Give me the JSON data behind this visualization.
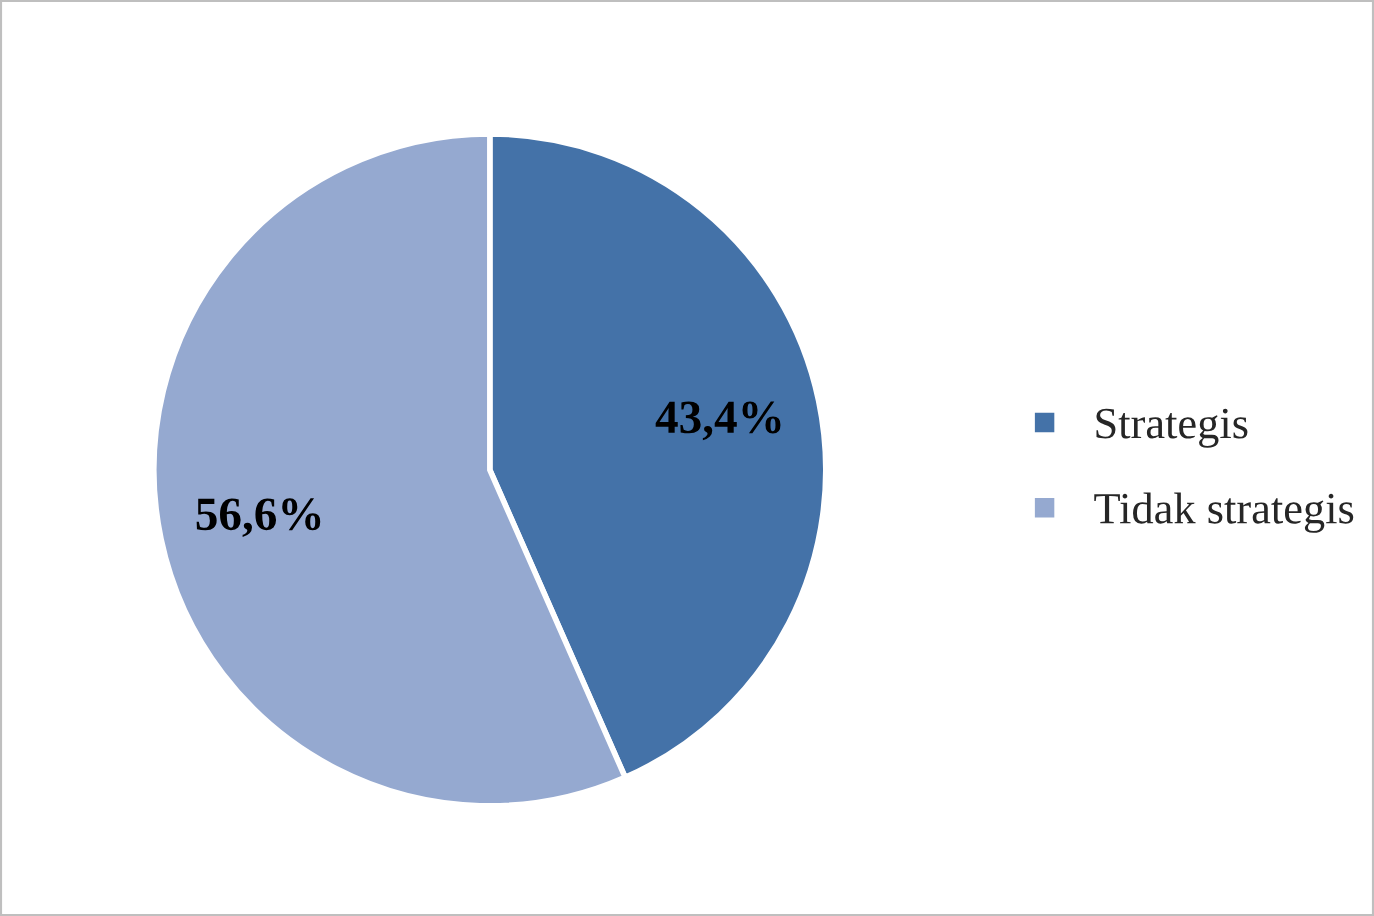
{
  "chart_data": {
    "type": "pie",
    "categories": [
      "Strategis",
      "Tidak strategis"
    ],
    "values": [
      43.4,
      56.6
    ],
    "value_labels": [
      "43,4%",
      "56,6%"
    ],
    "colors": [
      "#4472a8",
      "#95a9d0"
    ],
    "legend": "right"
  }
}
